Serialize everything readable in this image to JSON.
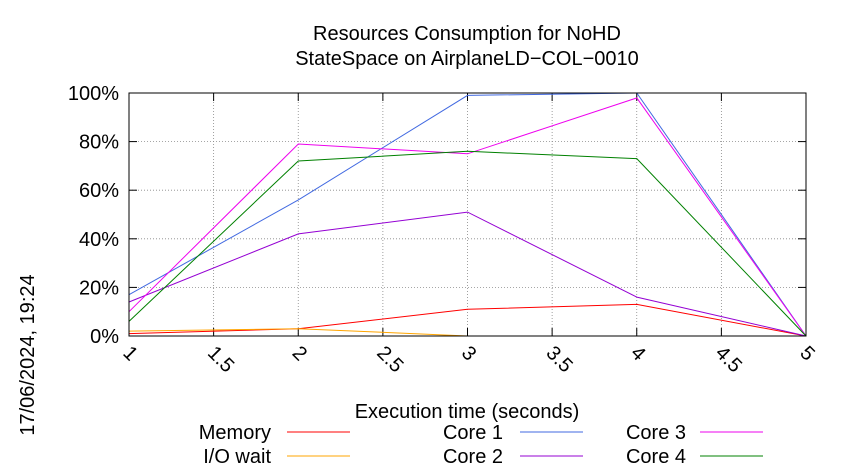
{
  "chart_data": {
    "type": "line",
    "title": [
      "Resources Consumption for NoHD",
      "StateSpace on AirplaneLD−COL−0010"
    ],
    "timestamp": "17/06/2024, 19:24",
    "xlabel": "Execution time (seconds)",
    "ylabel": "",
    "xlim": [
      1,
      5
    ],
    "ylim": [
      0,
      100
    ],
    "x_ticks": [
      "1",
      "1.5",
      "2",
      "2.5",
      "3",
      "3.5",
      "4",
      "4.5",
      "5"
    ],
    "y_ticks": [
      "0%",
      "20%",
      "40%",
      "60%",
      "80%",
      "100%"
    ],
    "grid": true,
    "legend_position": "bottom",
    "series": [
      {
        "name": "Memory",
        "color": "#ff0000",
        "x": [
          1,
          2,
          3,
          4,
          5
        ],
        "values": [
          1,
          3,
          11,
          13,
          0
        ]
      },
      {
        "name": "I/O wait",
        "color": "#ffa500",
        "x": [
          1,
          2,
          3
        ],
        "values": [
          2,
          3,
          0
        ]
      },
      {
        "name": "Core 1",
        "color": "#4169e1",
        "x": [
          1,
          2,
          3,
          4,
          5
        ],
        "values": [
          17,
          56,
          99,
          100,
          0
        ]
      },
      {
        "name": "Core 2",
        "color": "#9400d3",
        "x": [
          1,
          2,
          3,
          4,
          5
        ],
        "values": [
          14,
          42,
          51,
          16,
          0
        ]
      },
      {
        "name": "Core 3",
        "color": "#ee00ee",
        "x": [
          1,
          2,
          3,
          4,
          5
        ],
        "values": [
          10,
          79,
          75,
          98,
          0
        ]
      },
      {
        "name": "Core 4",
        "color": "#008000",
        "x": [
          1,
          2,
          3,
          4,
          5
        ],
        "values": [
          6,
          72,
          76,
          73,
          0
        ]
      }
    ]
  }
}
